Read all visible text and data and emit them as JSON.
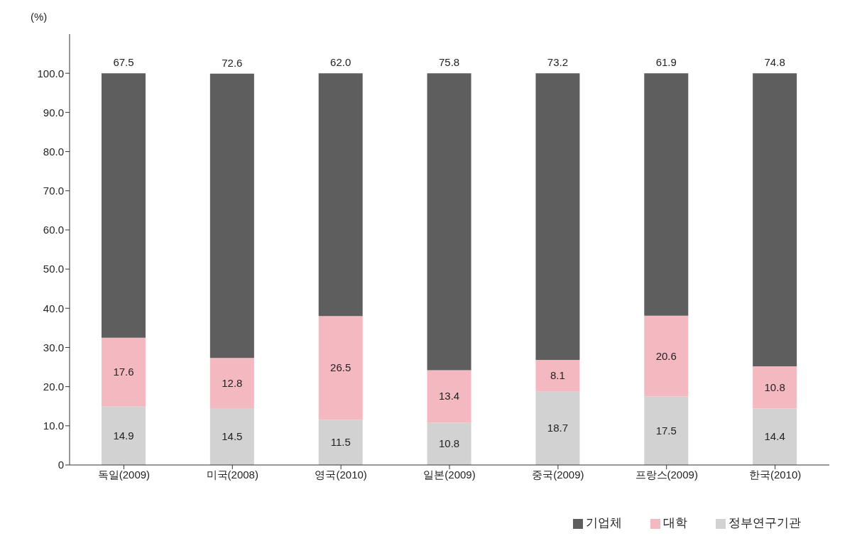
{
  "chart_data": {
    "type": "bar",
    "stacked": true,
    "ylabel": "(%)",
    "categories": [
      "독일(2009)",
      "미국(2008)",
      "영국(2010)",
      "일본(2009)",
      "중국(2009)",
      "프랑스(2009)",
      "한국(2010)"
    ],
    "series": [
      {
        "name": "정부연구기관",
        "color": "#d2d2d2",
        "values": [
          14.9,
          14.5,
          11.5,
          10.8,
          18.7,
          17.5,
          14.4
        ],
        "value_labels": [
          "14.9",
          "14.5",
          "11.5",
          "10.8",
          "18.7",
          "17.5",
          "14.4"
        ]
      },
      {
        "name": "대학",
        "color": "#f4b8c0",
        "values": [
          17.6,
          12.8,
          26.5,
          13.4,
          8.1,
          20.6,
          10.8
        ],
        "value_labels": [
          "17.6",
          "12.8",
          "26.5",
          "13.4",
          "8.1",
          "20.6",
          "10.8"
        ]
      },
      {
        "name": "기업체",
        "color": "#5e5e5e",
        "values": [
          67.5,
          72.6,
          62.0,
          75.8,
          73.2,
          61.9,
          74.8
        ],
        "value_labels": [
          "67.5",
          "72.6",
          "62.0",
          "75.8",
          "73.2",
          "61.9",
          "74.8"
        ]
      }
    ],
    "ylim": [
      0,
      110
    ],
    "yticks": [
      0,
      {
        "value": 10,
        "label": "10.0"
      },
      {
        "value": 20,
        "label": "20.0"
      },
      {
        "value": 30,
        "label": "30.0"
      },
      {
        "value": 40,
        "label": "40.0"
      },
      {
        "value": 50,
        "label": "50.0"
      },
      {
        "value": 60,
        "label": "60.0"
      },
      {
        "value": 70,
        "label": "70.0"
      },
      {
        "value": 80,
        "label": "80.0"
      },
      {
        "value": 90,
        "label": "90.0"
      },
      {
        "value": 100,
        "label": "100.0"
      }
    ],
    "grid": false,
    "legend": "bottom right"
  }
}
